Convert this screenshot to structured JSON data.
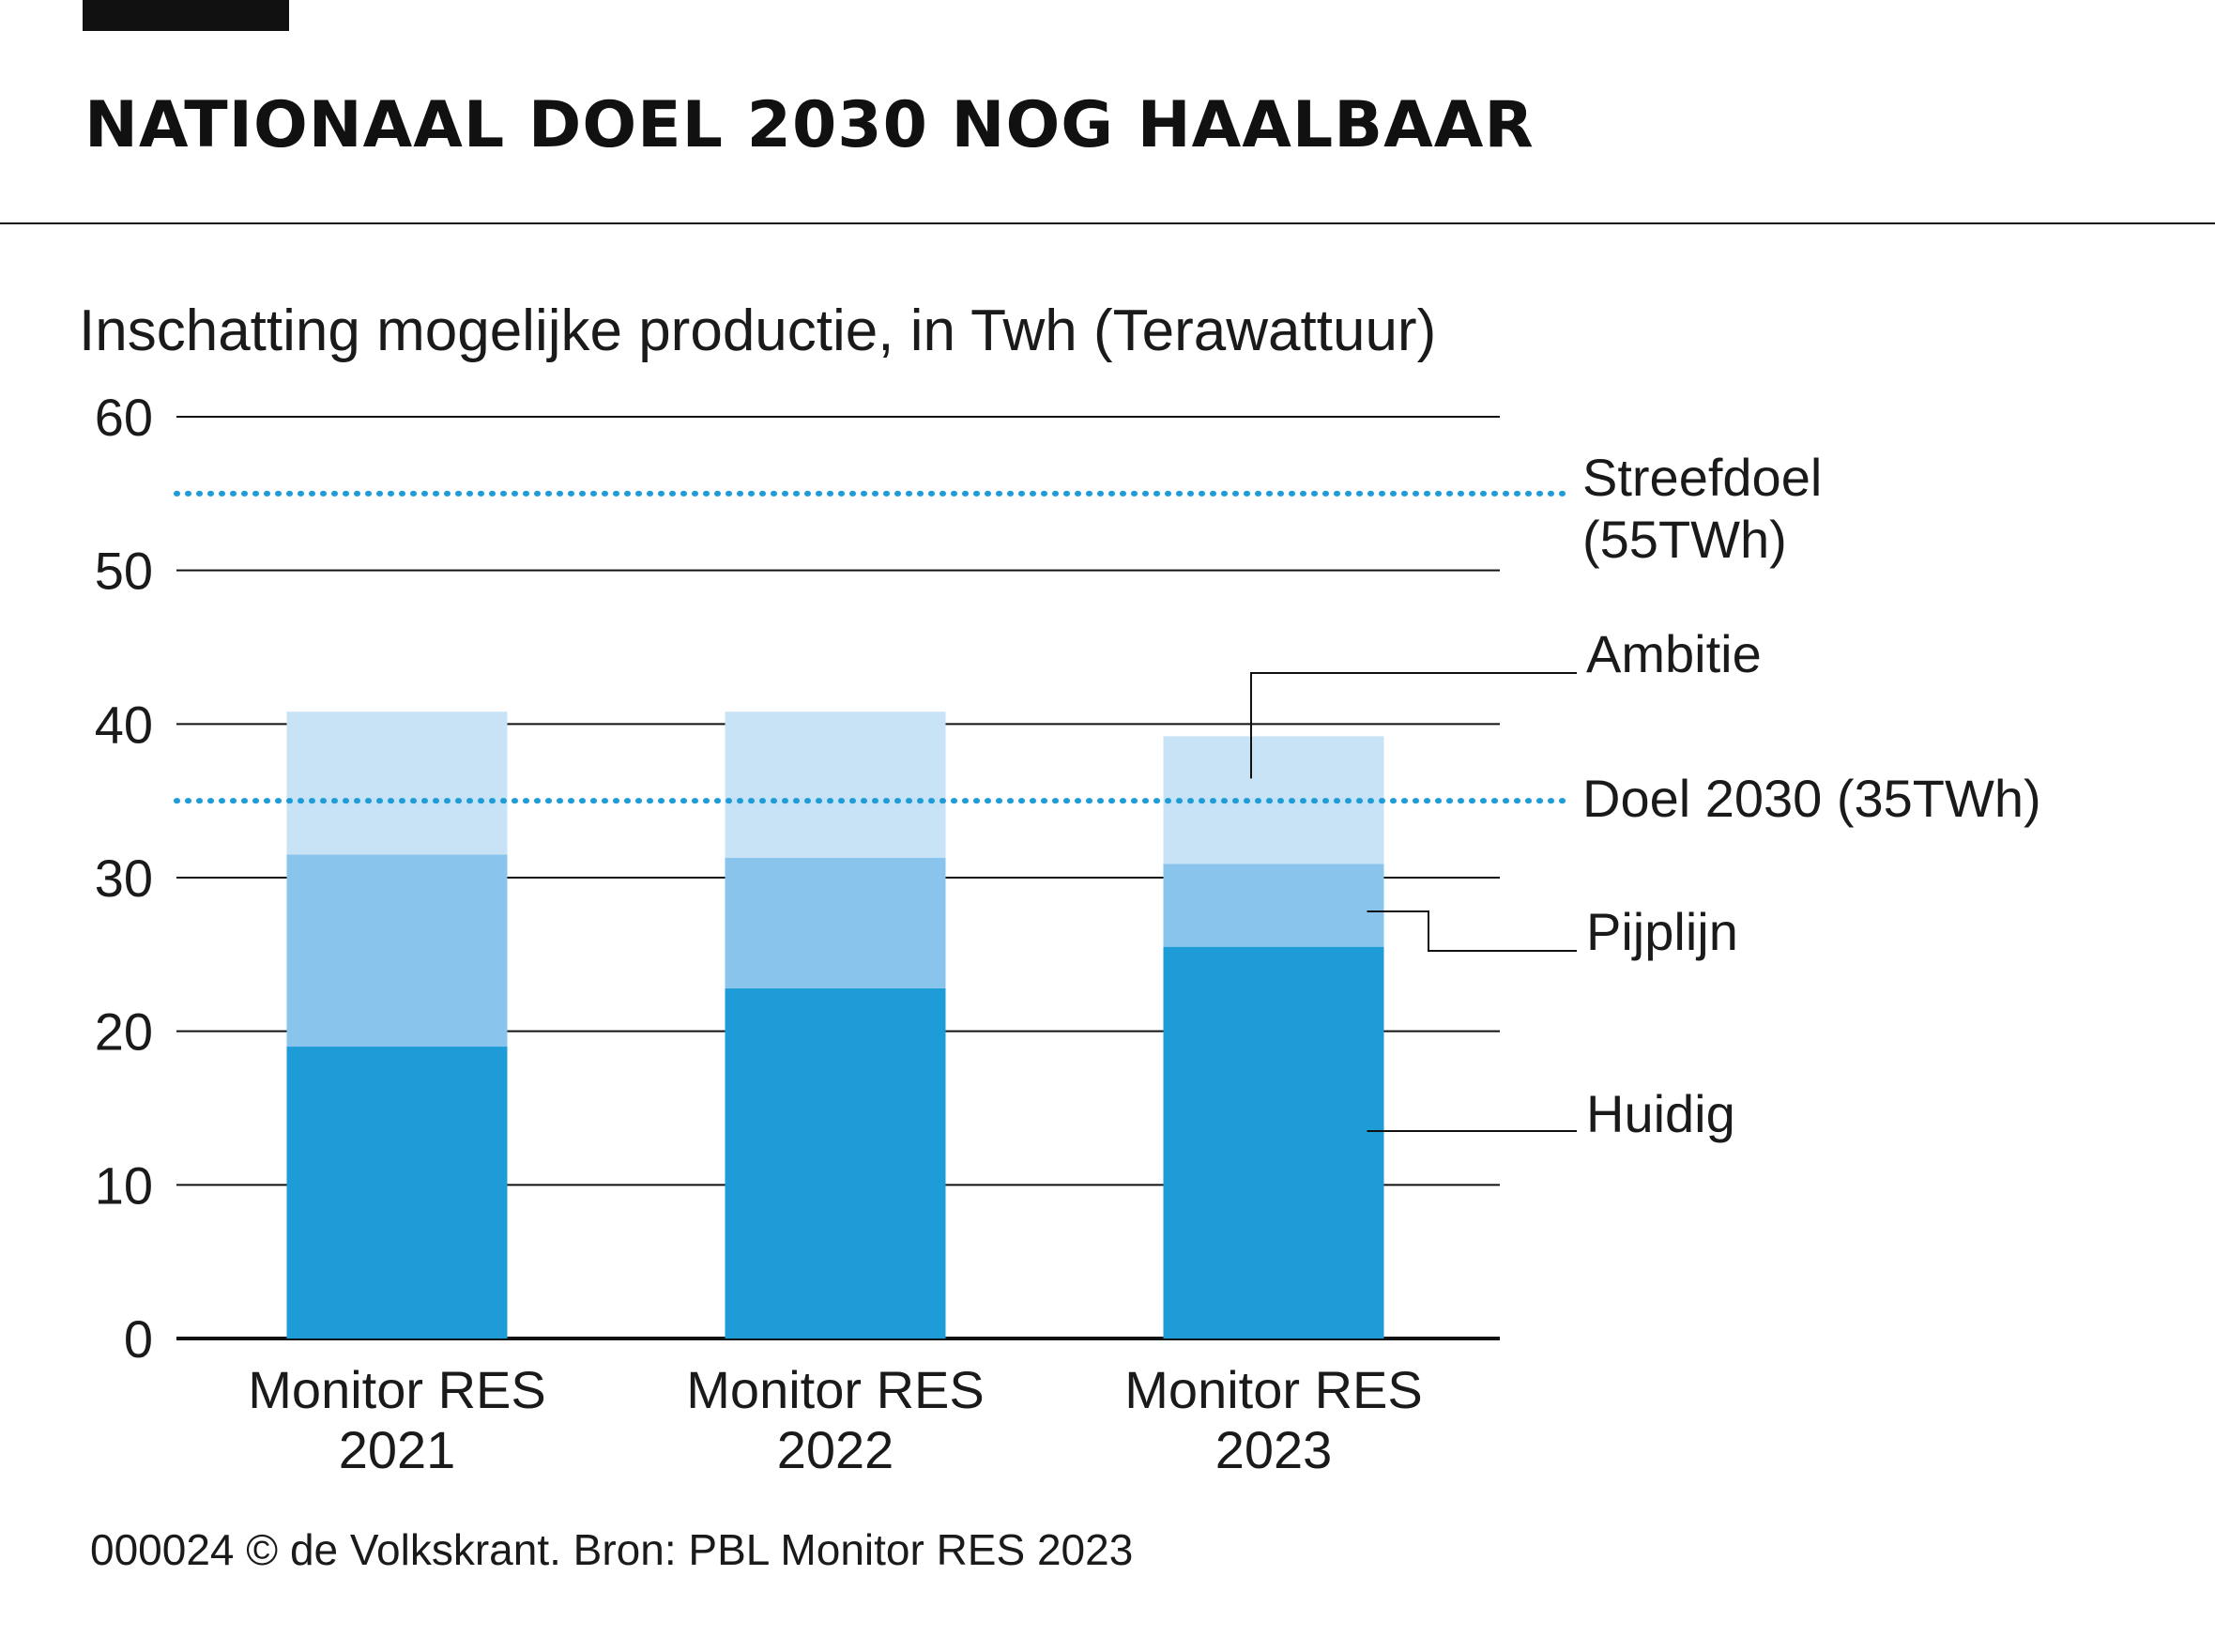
{
  "header": {
    "title": "NATIONAAL DOEL 2030 NOG HAALBAAR",
    "subtitle": "Inschatting mogelijke productie, in Twh (Terawattuur)"
  },
  "footer": {
    "source": "000024 © de Volkskrant. Bron: PBL Monitor RES 2023"
  },
  "colors": {
    "huidig": "#1e9cd8",
    "pijplijn": "#88c4ec",
    "ambitie": "#c8e2f6",
    "reference": "#1e9cd8",
    "grid": "#111111",
    "text": "#1a1a1a"
  },
  "chart_data": {
    "type": "bar",
    "stacked": true,
    "title": "NATIONAAL DOEL 2030 NOG HAALBAAR",
    "subtitle": "Inschatting mogelijke productie, in Twh (Terawattuur)",
    "categories": [
      [
        "Monitor RES",
        "2021"
      ],
      [
        "Monitor RES",
        "2022"
      ],
      [
        "Monitor RES",
        "2023"
      ]
    ],
    "series": [
      {
        "name": "Huidig",
        "values": [
          19,
          22.8,
          25.5
        ]
      },
      {
        "name": "Pijplijn",
        "values": [
          12.5,
          8.5,
          5.4
        ]
      },
      {
        "name": "Ambitie",
        "values": [
          9.3,
          9.5,
          8.3
        ]
      }
    ],
    "ylim": [
      0,
      60
    ],
    "yticks": [
      "0",
      "10",
      "20",
      "30",
      "40",
      "50",
      "60"
    ],
    "grid": true,
    "legend": "right, labels with leader lines",
    "reference_lines": [
      {
        "value": 55,
        "label": [
          "Streefdoel",
          "(55TWh)"
        ]
      },
      {
        "value": 35,
        "label": [
          "Doel 2030 (35TWh)"
        ]
      }
    ]
  }
}
